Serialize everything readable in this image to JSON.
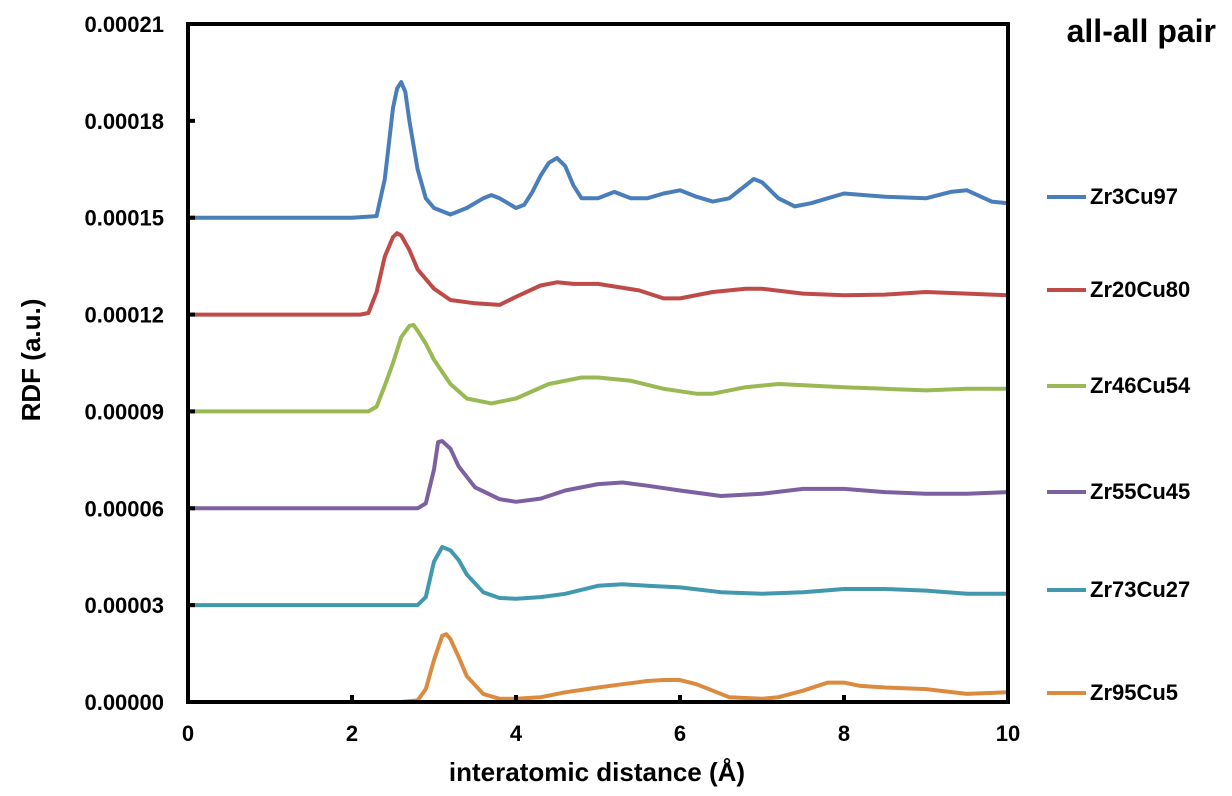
{
  "chart_data": {
    "type": "line",
    "title": "all-all pair",
    "xlabel": "interatomic distance (Å)",
    "ylabel": "RDF (a.u.)",
    "xlim": [
      0,
      10
    ],
    "ylim": [
      0,
      0.00021
    ],
    "x_ticks": [
      0,
      2,
      4,
      6,
      8,
      10
    ],
    "x_tick_labels": [
      "0",
      "2",
      "4",
      "6",
      "8",
      "10"
    ],
    "y_ticks": [
      0,
      3e-05,
      6e-05,
      9e-05,
      0.00012,
      0.00015,
      0.00018,
      0.00021
    ],
    "y_tick_labels": [
      "0.00000",
      "0.00003",
      "0.00006",
      "0.00009",
      "0.00012",
      "0.00015",
      "0.00018",
      "0.00021"
    ],
    "grid": false,
    "legend_position": "right",
    "series": [
      {
        "name": "Zr3Cu97",
        "color": "#4a7ebb",
        "x": [
          0,
          2.0,
          2.3,
          2.4,
          2.5,
          2.55,
          2.6,
          2.65,
          2.7,
          2.8,
          2.9,
          3.0,
          3.2,
          3.4,
          3.6,
          3.7,
          3.8,
          4.0,
          4.1,
          4.2,
          4.3,
          4.4,
          4.5,
          4.6,
          4.7,
          4.8,
          5.0,
          5.2,
          5.4,
          5.6,
          5.8,
          6.0,
          6.2,
          6.4,
          6.6,
          6.8,
          6.9,
          7.0,
          7.2,
          7.4,
          7.6,
          7.8,
          8.0,
          8.5,
          9.0,
          9.3,
          9.5,
          9.8,
          10.0
        ],
        "values": [
          0.00015,
          0.00015,
          0.0001505,
          0.000162,
          0.000184,
          0.00019,
          0.000192,
          0.000189,
          0.00018,
          0.000165,
          0.000156,
          0.000153,
          0.000151,
          0.000153,
          0.000156,
          0.000157,
          0.000156,
          0.000153,
          0.000154,
          0.000158,
          0.000163,
          0.000167,
          0.0001685,
          0.000166,
          0.00016,
          0.000156,
          0.000156,
          0.000158,
          0.000156,
          0.000156,
          0.0001575,
          0.0001585,
          0.0001565,
          0.000155,
          0.000156,
          0.00016,
          0.000162,
          0.000161,
          0.000156,
          0.0001535,
          0.0001545,
          0.000156,
          0.0001575,
          0.0001565,
          0.000156,
          0.000158,
          0.0001585,
          0.000155,
          0.0001545
        ]
      },
      {
        "name": "Zr20Cu80",
        "color": "#be4b48",
        "x": [
          0,
          2.1,
          2.2,
          2.3,
          2.4,
          2.5,
          2.55,
          2.6,
          2.7,
          2.8,
          3.0,
          3.2,
          3.5,
          3.8,
          4.0,
          4.3,
          4.5,
          4.7,
          5.0,
          5.5,
          5.8,
          6.0,
          6.4,
          6.8,
          7.0,
          7.5,
          8.0,
          8.5,
          9.0,
          9.5,
          10.0
        ],
        "values": [
          0.00012,
          0.00012,
          0.0001205,
          0.000127,
          0.000138,
          0.000144,
          0.0001452,
          0.0001445,
          0.00014,
          0.000134,
          0.000128,
          0.0001245,
          0.0001235,
          0.000123,
          0.0001255,
          0.000129,
          0.00013,
          0.0001295,
          0.0001295,
          0.0001275,
          0.000125,
          0.000125,
          0.000127,
          0.000128,
          0.000128,
          0.0001265,
          0.000126,
          0.0001262,
          0.000127,
          0.0001265,
          0.000126
        ]
      },
      {
        "name": "Zr46Cu54",
        "color": "#98b954",
        "x": [
          0,
          2.2,
          2.3,
          2.4,
          2.5,
          2.6,
          2.7,
          2.75,
          2.8,
          2.9,
          3.0,
          3.2,
          3.4,
          3.7,
          4.0,
          4.4,
          4.8,
          5.0,
          5.4,
          5.8,
          6.2,
          6.4,
          6.8,
          7.2,
          7.6,
          8.0,
          8.5,
          9.0,
          9.5,
          10.0
        ],
        "values": [
          9e-05,
          9e-05,
          9.15e-05,
          9.8e-05,
          0.000105,
          0.000113,
          0.0001165,
          0.0001168,
          0.000115,
          0.000111,
          0.000106,
          9.85e-05,
          9.4e-05,
          9.25e-05,
          9.4e-05,
          9.85e-05,
          0.0001005,
          0.0001005,
          9.95e-05,
          9.7e-05,
          9.55e-05,
          9.55e-05,
          9.75e-05,
          9.85e-05,
          9.8e-05,
          9.75e-05,
          9.7e-05,
          9.65e-05,
          9.7e-05,
          9.7e-05
        ]
      },
      {
        "name": "Zr55Cu45",
        "color": "#7d60a0",
        "x": [
          0,
          2.8,
          2.9,
          3.0,
          3.05,
          3.1,
          3.2,
          3.3,
          3.5,
          3.8,
          4.0,
          4.3,
          4.6,
          5.0,
          5.3,
          5.6,
          6.0,
          6.5,
          7.0,
          7.5,
          8.0,
          8.5,
          9.0,
          9.5,
          10.0
        ],
        "values": [
          6e-05,
          6e-05,
          6.15e-05,
          7.2e-05,
          8.05e-05,
          8.08e-05,
          7.85e-05,
          7.3e-05,
          6.65e-05,
          6.28e-05,
          6.2e-05,
          6.3e-05,
          6.55e-05,
          6.75e-05,
          6.8e-05,
          6.7e-05,
          6.55e-05,
          6.38e-05,
          6.45e-05,
          6.6e-05,
          6.6e-05,
          6.5e-05,
          6.45e-05,
          6.45e-05,
          6.5e-05
        ]
      },
      {
        "name": "Zr73Cu27",
        "color": "#4198af",
        "x": [
          0,
          2.8,
          2.9,
          3.0,
          3.1,
          3.2,
          3.3,
          3.4,
          3.6,
          3.8,
          4.0,
          4.3,
          4.6,
          5.0,
          5.3,
          5.6,
          6.0,
          6.5,
          7.0,
          7.5,
          8.0,
          8.5,
          9.0,
          9.5,
          10.0
        ],
        "values": [
          3e-05,
          3e-05,
          3.25e-05,
          4.35e-05,
          4.8e-05,
          4.7e-05,
          4.4e-05,
          3.95e-05,
          3.4e-05,
          3.22e-05,
          3.2e-05,
          3.25e-05,
          3.35e-05,
          3.6e-05,
          3.65e-05,
          3.6e-05,
          3.55e-05,
          3.4e-05,
          3.35e-05,
          3.4e-05,
          3.5e-05,
          3.5e-05,
          3.45e-05,
          3.35e-05,
          3.35e-05
        ]
      },
      {
        "name": "Zr95Cu5",
        "color": "#db8b40",
        "x": [
          0,
          2.6,
          2.8,
          2.9,
          3.0,
          3.1,
          3.15,
          3.2,
          3.3,
          3.4,
          3.6,
          3.8,
          4.0,
          4.3,
          4.6,
          5.0,
          5.3,
          5.6,
          5.8,
          6.0,
          6.2,
          6.6,
          7.0,
          7.2,
          7.5,
          7.8,
          8.0,
          8.2,
          8.5,
          9.0,
          9.5,
          10.0
        ],
        "values": [
          0,
          0,
          5e-07,
          4e-06,
          1.3e-05,
          2.05e-05,
          2.1e-05,
          1.95e-05,
          1.4e-05,
          8e-06,
          2.5e-06,
          1e-06,
          1e-06,
          1.5e-06,
          3e-06,
          4.5e-06,
          5.5e-06,
          6.5e-06,
          6.8e-06,
          6.8e-06,
          5.5e-06,
          1.5e-06,
          1e-06,
          1.5e-06,
          3.5e-06,
          6e-06,
          6e-06,
          5e-06,
          4.5e-06,
          4e-06,
          2.5e-06,
          3e-06
        ]
      }
    ]
  }
}
